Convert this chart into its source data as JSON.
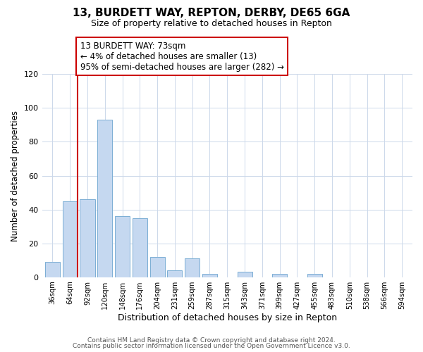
{
  "title": "13, BURDETT WAY, REPTON, DERBY, DE65 6GA",
  "subtitle": "Size of property relative to detached houses in Repton",
  "xlabel": "Distribution of detached houses by size in Repton",
  "ylabel": "Number of detached properties",
  "bar_labels": [
    "36sqm",
    "64sqm",
    "92sqm",
    "120sqm",
    "148sqm",
    "176sqm",
    "204sqm",
    "231sqm",
    "259sqm",
    "287sqm",
    "315sqm",
    "343sqm",
    "371sqm",
    "399sqm",
    "427sqm",
    "455sqm",
    "483sqm",
    "510sqm",
    "538sqm",
    "566sqm",
    "594sqm"
  ],
  "bar_values": [
    9,
    45,
    46,
    93,
    36,
    35,
    12,
    4,
    11,
    2,
    0,
    3,
    0,
    2,
    0,
    2,
    0,
    0,
    0,
    0,
    0
  ],
  "bar_color": "#c5d8f0",
  "bar_edge_color": "#7baed4",
  "vline_color": "#cc0000",
  "vline_xindex": 1,
  "annotation_text": "13 BURDETT WAY: 73sqm\n← 4% of detached houses are smaller (13)\n95% of semi-detached houses are larger (282) →",
  "annotation_box_color": "#ffffff",
  "annotation_box_edge": "#cc0000",
  "ylim": [
    0,
    120
  ],
  "yticks": [
    0,
    20,
    40,
    60,
    80,
    100,
    120
  ],
  "footer_line1": "Contains HM Land Registry data © Crown copyright and database right 2024.",
  "footer_line2": "Contains public sector information licensed under the Open Government Licence v3.0.",
  "bg_color": "#ffffff",
  "grid_color": "#ccd8ea"
}
